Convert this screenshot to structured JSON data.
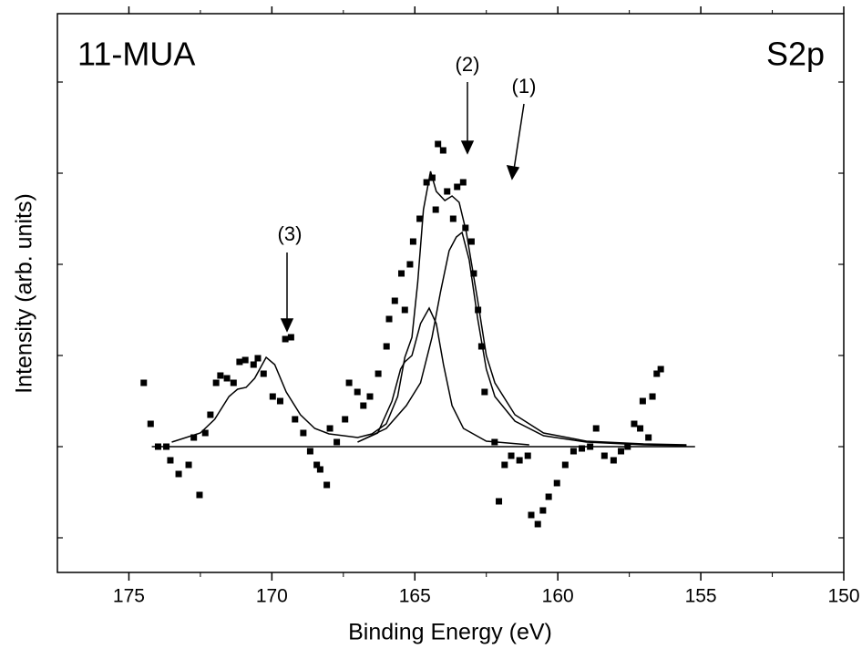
{
  "chart_data": {
    "type": "scatter",
    "x_label": "Binding Energy (eV)",
    "y_label": "Intensity (arb. units)",
    "annotations": [
      "11-MUA",
      "S2p",
      "(1)",
      "(2)",
      "(3)"
    ],
    "xlim": [
      177.5,
      150
    ],
    "xticks": [
      175,
      170,
      165,
      160,
      155,
      150
    ],
    "ylim": [
      -1.38,
      4.75
    ],
    "yticks": [
      -1,
      0,
      1,
      2,
      3,
      4
    ],
    "series": [
      {
        "kind": "points",
        "color": "#000000",
        "x": [
          174.48,
          174.24,
          173.98,
          173.69,
          173.55,
          173.26,
          172.91,
          172.73,
          172.53,
          172.33,
          172.15,
          171.95,
          171.8,
          171.57,
          171.34,
          171.13,
          170.93,
          170.64,
          170.49,
          170.29,
          169.97,
          169.71,
          169.53,
          169.33,
          169.19,
          168.9,
          168.66,
          168.43,
          168.31,
          168.08,
          167.97,
          167.73,
          167.44,
          167.3,
          167.01,
          166.8,
          166.57,
          166.28,
          165.99,
          165.9,
          165.7,
          165.47,
          165.35,
          165.17,
          165.06,
          164.83,
          164.59,
          164.39,
          164.27,
          164.19,
          164.01,
          163.87,
          163.66,
          163.52,
          163.31,
          163.23,
          163.02,
          162.94,
          162.79,
          162.67,
          162.56,
          162.21,
          162.06,
          161.86,
          161.63,
          161.34,
          161.05,
          160.93,
          160.7,
          160.52,
          160.32,
          160.03,
          159.74,
          159.45,
          159.16,
          158.87,
          158.66,
          158.37,
          158.05,
          157.79,
          157.56,
          157.33,
          157.12,
          157.03,
          156.83,
          156.69,
          156.54,
          156.4
        ],
        "values": [
          0.7,
          0.25,
          0,
          0,
          -0.15,
          -0.3,
          -0.2,
          0.1,
          -0.53,
          0.15,
          0.35,
          0.7,
          0.78,
          0.75,
          0.7,
          0.93,
          0.95,
          0.9,
          0.97,
          0.8,
          0.55,
          0.5,
          1.18,
          1.2,
          0.3,
          0.15,
          -0.05,
          -0.2,
          -0.25,
          -0.42,
          0.2,
          0.05,
          0.3,
          0.7,
          0.6,
          0.45,
          0.55,
          0.8,
          1.1,
          1.4,
          1.6,
          1.9,
          1.5,
          2.0,
          2.25,
          2.5,
          2.9,
          2.95,
          2.6,
          3.32,
          3.25,
          2.8,
          2.5,
          2.85,
          2.9,
          2.4,
          2.25,
          1.9,
          1.5,
          1.1,
          0.6,
          0.05,
          -0.6,
          -0.2,
          -0.1,
          -0.15,
          -0.1,
          -0.75,
          -0.85,
          -0.7,
          -0.55,
          -0.4,
          -0.2,
          -0.05,
          -0.02,
          0,
          0.2,
          -0.1,
          -0.15,
          -0.05,
          0,
          0.25,
          0.2,
          0.5,
          0.1,
          0.55,
          0.8,
          0.85
        ]
      },
      {
        "kind": "line",
        "color": "#000000",
        "x": [
          173.5,
          172.5,
          172,
          171.5,
          171.2,
          170.9,
          170.6,
          170.2,
          169.9,
          169.5,
          169,
          168.5,
          168,
          167,
          166.5,
          166,
          165.6,
          165.35,
          165.1,
          164.9,
          164.7,
          164.45,
          164.25,
          163.95,
          163.7,
          163.45,
          163.2,
          162.8,
          162.5,
          162.2,
          161.5,
          160.5,
          159,
          157,
          155.5
        ],
        "values": [
          0.05,
          0.15,
          0.3,
          0.55,
          0.63,
          0.65,
          0.75,
          0.98,
          0.9,
          0.6,
          0.35,
          0.2,
          0.14,
          0.1,
          0.14,
          0.25,
          0.55,
          0.98,
          1.2,
          1.8,
          2.6,
          3.02,
          2.8,
          2.7,
          2.75,
          2.68,
          2.35,
          1.6,
          1.0,
          0.7,
          0.35,
          0.15,
          0.06,
          0.03,
          0.02
        ]
      },
      {
        "kind": "line",
        "color": "#000000",
        "x": [
          167,
          166.3,
          165.8,
          165.5,
          165.35,
          165.1,
          164.8,
          164.5,
          164.25,
          164,
          163.7,
          163.3,
          162.5,
          161
        ],
        "values": [
          0.05,
          0.15,
          0.5,
          0.85,
          0.93,
          1.0,
          1.35,
          1.52,
          1.35,
          0.9,
          0.45,
          0.2,
          0.06,
          0.02
        ]
      },
      {
        "kind": "line",
        "color": "#000000",
        "x": [
          167,
          166,
          165.3,
          164.8,
          164.4,
          164.1,
          163.8,
          163.55,
          163.35,
          163.1,
          162.8,
          162.5,
          162.2,
          161.5,
          160.5,
          159,
          157,
          155.5
        ],
        "values": [
          0.05,
          0.2,
          0.45,
          0.7,
          1.2,
          1.7,
          2.15,
          2.3,
          2.35,
          2.05,
          1.4,
          0.85,
          0.55,
          0.28,
          0.12,
          0.05,
          0.02,
          0.01
        ]
      },
      {
        "kind": "line",
        "color": "#000000",
        "x": [
          174.2,
          155.2
        ],
        "values": [
          0,
          0
        ]
      }
    ]
  }
}
